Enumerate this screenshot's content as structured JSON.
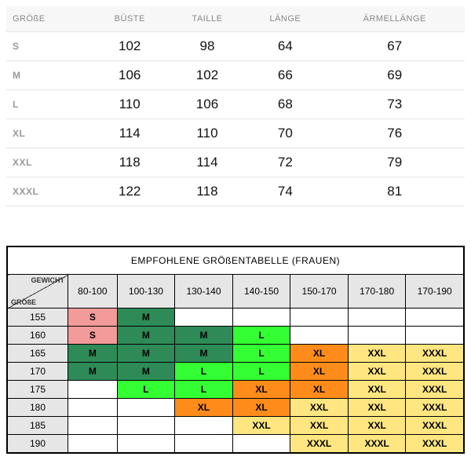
{
  "sizing_table": {
    "columns": [
      "GRÖßE",
      "BÜSTE",
      "TAILLE",
      "LÄNGE",
      "ÄRMELLÄNGE"
    ],
    "rows": [
      [
        "S",
        "102",
        "98",
        "64",
        "67"
      ],
      [
        "M",
        "106",
        "102",
        "66",
        "69"
      ],
      [
        "L",
        "110",
        "106",
        "68",
        "73"
      ],
      [
        "XL",
        "114",
        "110",
        "70",
        "76"
      ],
      [
        "XXL",
        "118",
        "114",
        "72",
        "79"
      ],
      [
        "XXXL",
        "122",
        "118",
        "74",
        "81"
      ]
    ]
  },
  "recommended_table": {
    "title": "EMPFOHLENE GRÖßENTABELLE (FRAUEN)",
    "corner_top": "GEWICHT",
    "corner_bottom": "GRÖßE",
    "weight_headers": [
      "80-100",
      "100-130",
      "130-140",
      "140-150",
      "150-170",
      "170-180",
      "170-190"
    ],
    "height_headers": [
      "155",
      "160",
      "165",
      "170",
      "175",
      "180",
      "185",
      "190"
    ],
    "cells": [
      [
        {
          "v": "S",
          "c": "#f39a9a"
        },
        {
          "v": "M",
          "c": "#2e8b57"
        },
        {
          "v": "",
          "c": ""
        },
        {
          "v": "",
          "c": ""
        },
        {
          "v": "",
          "c": ""
        },
        {
          "v": "",
          "c": ""
        },
        {
          "v": "",
          "c": ""
        }
      ],
      [
        {
          "v": "S",
          "c": "#f39a9a"
        },
        {
          "v": "M",
          "c": "#2e8b57"
        },
        {
          "v": "M",
          "c": "#2e8b57"
        },
        {
          "v": "L",
          "c": "#33ff33"
        },
        {
          "v": "",
          "c": ""
        },
        {
          "v": "",
          "c": ""
        },
        {
          "v": "",
          "c": ""
        }
      ],
      [
        {
          "v": "M",
          "c": "#2e8b57"
        },
        {
          "v": "M",
          "c": "#2e8b57"
        },
        {
          "v": "M",
          "c": "#2e8b57"
        },
        {
          "v": "L",
          "c": "#33ff33"
        },
        {
          "v": "XL",
          "c": "#ff8c1a"
        },
        {
          "v": "XXL",
          "c": "#ffe680"
        },
        {
          "v": "XXXL",
          "c": "#ffe680"
        }
      ],
      [
        {
          "v": "M",
          "c": "#2e8b57"
        },
        {
          "v": "M",
          "c": "#2e8b57"
        },
        {
          "v": "L",
          "c": "#33ff33"
        },
        {
          "v": "L",
          "c": "#33ff33"
        },
        {
          "v": "XL",
          "c": "#ff8c1a"
        },
        {
          "v": "XXL",
          "c": "#ffe680"
        },
        {
          "v": "XXXL",
          "c": "#ffe680"
        }
      ],
      [
        {
          "v": "",
          "c": ""
        },
        {
          "v": "L",
          "c": "#33ff33"
        },
        {
          "v": "L",
          "c": "#33ff33"
        },
        {
          "v": "XL",
          "c": "#ff8c1a"
        },
        {
          "v": "XL",
          "c": "#ff8c1a"
        },
        {
          "v": "XXL",
          "c": "#ffe680"
        },
        {
          "v": "XXXL",
          "c": "#ffe680"
        }
      ],
      [
        {
          "v": "",
          "c": ""
        },
        {
          "v": "",
          "c": ""
        },
        {
          "v": "XL",
          "c": "#ff8c1a"
        },
        {
          "v": "XL",
          "c": "#ff8c1a"
        },
        {
          "v": "XXL",
          "c": "#ffe680"
        },
        {
          "v": "XXL",
          "c": "#ffe680"
        },
        {
          "v": "XXXL",
          "c": "#ffe680"
        }
      ],
      [
        {
          "v": "",
          "c": ""
        },
        {
          "v": "",
          "c": ""
        },
        {
          "v": "",
          "c": ""
        },
        {
          "v": "XXL",
          "c": "#ffe680"
        },
        {
          "v": "XXL",
          "c": "#ffe680"
        },
        {
          "v": "XXL",
          "c": "#ffe680"
        },
        {
          "v": "XXXL",
          "c": "#ffe680"
        }
      ],
      [
        {
          "v": "",
          "c": ""
        },
        {
          "v": "",
          "c": ""
        },
        {
          "v": "",
          "c": ""
        },
        {
          "v": "",
          "c": ""
        },
        {
          "v": "XXXL",
          "c": "#ffe680"
        },
        {
          "v": "XXXL",
          "c": "#ffe680"
        },
        {
          "v": "XXXL",
          "c": "#ffe680"
        }
      ]
    ]
  },
  "colors": {
    "header_bg": "#f7f7f7",
    "corner_bg": "#e6e6e6",
    "border": "#000000"
  }
}
